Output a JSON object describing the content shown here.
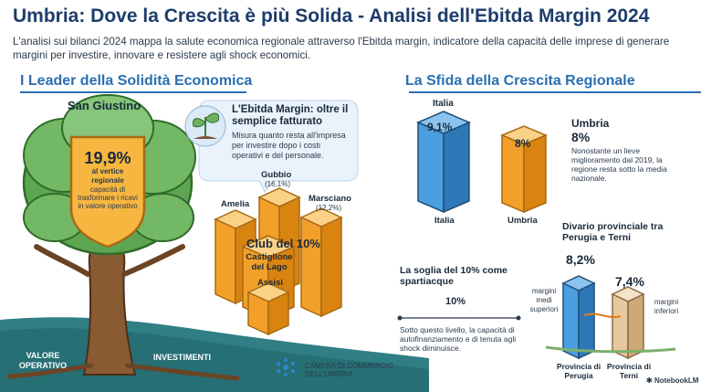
{
  "header": {
    "title": "Umbria: Dove la Crescita è più Solida - Analisi dell'Ebitda Margin 2024",
    "subtitle": "L'analisi sui bilanci 2024 mappa la salute economica regionale attraverso l'Ebitda margin, indicatore della capacità delle imprese di generare margini per investire, innovare e resistere agli shock economici."
  },
  "left": {
    "section_title": "I Leader della Solidità Economica",
    "leader_name": "San Giustino",
    "leader_value": "19,9%",
    "leader_tag": "al vertice regionale",
    "leader_desc": "capacità di trasformare i ricavi in valore operativo",
    "ebitda_title": "L'Ebitda Margin: oltre il semplice fatturato",
    "ebitda_desc": "Misura quanto resta all'impresa per investire dopo i costi operativi e del personale.",
    "root_left": "VALORE OPERATIVO",
    "root_right": "INVESTIMENTI",
    "club_title": "Club del 10%",
    "cities": [
      {
        "name": "Gubbio",
        "value": "(16,1%)"
      },
      {
        "name": "Amelia",
        "value": ""
      },
      {
        "name": "Marsciano",
        "value": "(12,2%)"
      },
      {
        "name": "Castiglione del Lago",
        "value": ""
      },
      {
        "name": "Assisi",
        "value": ""
      }
    ]
  },
  "right": {
    "section_title": "La Sfida della Crescita Regionale",
    "italia_label": "Italia",
    "italia_value": "9,1%",
    "umbria_label": "Umbria",
    "umbria_value": "8%",
    "umbria_card_title": "Umbria",
    "umbria_card_value": "8%",
    "umbria_card_desc": "Nonostante un lieve miglioramento dal 2019, la regione resta sotto la media nazionale.",
    "divario_title": "Divario provinciale tra Perugia e Terni",
    "perugia_value": "8,2%",
    "terni_value": "7,4%",
    "perugia_label": "Provincia di Perugia",
    "terni_label": "Provincia di Terni",
    "margini_superiori": "margini medi superiori",
    "margini_inferiori": "margini inferiori",
    "soglia_title": "La soglia del 10% come spartiacque",
    "soglia_value": "10%",
    "soglia_desc": "Sotto questo livello, la capacità di autofinanziamento e di tenuta agli shock diminuisce."
  },
  "footer": {
    "org_name": "CAMERA DI COMMERCIO DELL'UMBRIA",
    "brand": "NotebookLM"
  },
  "colors": {
    "blue": "#3f8fd8",
    "orange": "#f2a02a",
    "green": "#4f9a4a",
    "tan": "#e7c9a0",
    "title": "#1d3d6b"
  }
}
